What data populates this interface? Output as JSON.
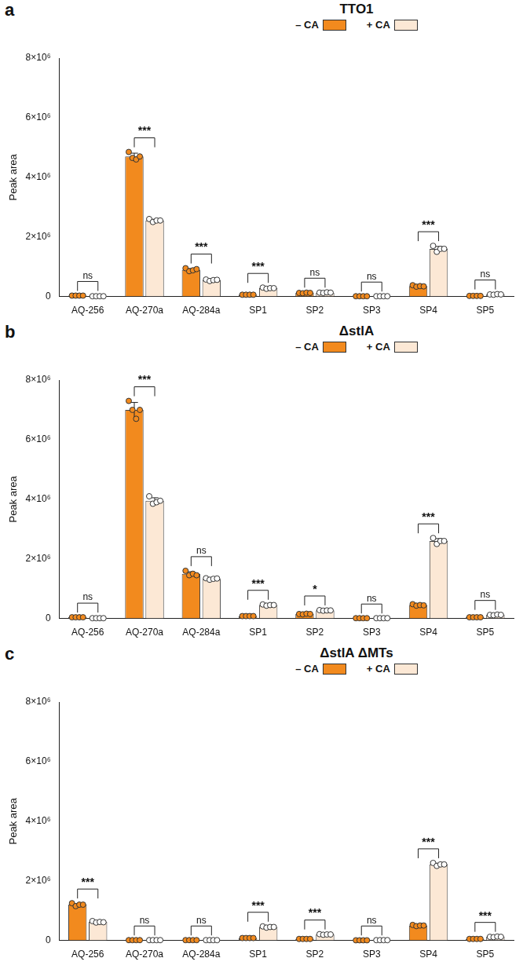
{
  "chart_data": [
    {
      "type": "bar",
      "panel": "a",
      "title": "TTO1",
      "y_label": "Peak area",
      "categories": [
        "AQ-256",
        "AQ-270a",
        "AQ-284a",
        "SP1",
        "SP2",
        "SP3",
        "SP4",
        "SP5"
      ],
      "series": [
        {
          "name": "– CA",
          "color": "#f28a1e",
          "values": [
            30000.0,
            4700000.0,
            900000.0,
            60000.0,
            120000.0,
            10000.0,
            350000.0,
            20000.0
          ],
          "errors": [
            0,
            110000.0,
            40000.0,
            0,
            10000.0,
            0,
            20000.0,
            0
          ],
          "points": [
            [
              30000.0,
              30000.0,
              30000.0,
              30000.0
            ],
            [
              4850000.0,
              4650000.0,
              4600000.0,
              4700000.0
            ],
            [
              950000.0,
              850000.0,
              880000.0,
              920000.0
            ],
            [
              60000.0,
              60000.0,
              60000.0,
              60000.0
            ],
            [
              120000.0,
              110000.0,
              130000.0,
              120000.0
            ],
            [
              10000.0,
              10000.0,
              10000.0,
              10000.0
            ],
            [
              380000.0,
              330000.0,
              350000.0,
              340000.0
            ],
            [
              20000.0,
              20000.0,
              20000.0,
              20000.0
            ]
          ]
        },
        {
          "name": "+ CA",
          "color": "#fce8d5",
          "values": [
            10000.0,
            2550000.0,
            550000.0,
            280000.0,
            130000.0,
            10000.0,
            1600000.0,
            70000.0
          ],
          "errors": [
            0,
            40000.0,
            20000.0,
            20000.0,
            10000.0,
            0,
            80000.0,
            10000.0
          ],
          "points": [
            [
              10000.0,
              10000.0,
              10000.0,
              10000.0
            ],
            [
              2600000.0,
              2500000.0,
              2550000.0,
              2550000.0
            ],
            [
              570000.0,
              520000.0,
              550000.0,
              560000.0
            ],
            [
              300000.0,
              260000.0,
              280000.0,
              280000.0
            ],
            [
              130000.0,
              120000.0,
              140000.0,
              130000.0
            ],
            [
              10000.0,
              10000.0,
              10000.0,
              10000.0
            ],
            [
              1700000.0,
              1500000.0,
              1600000.0,
              1600000.0
            ],
            [
              70000.0,
              60000.0,
              80000.0,
              70000.0
            ]
          ]
        }
      ],
      "significance": [
        "ns",
        "***",
        "***",
        "***",
        "ns",
        "ns",
        "***",
        "ns"
      ],
      "ylim": [
        0,
        8000000.0
      ],
      "yticks": [
        0,
        {
          "value": 2000000.0,
          "label": "2×10⁶"
        },
        {
          "value": 4000000.0,
          "label": "4×10⁶"
        },
        {
          "value": 6000000.0,
          "label": "6×10⁶"
        },
        {
          "value": 8000000.0,
          "label": "8×10⁶"
        }
      ],
      "grid": false,
      "legend": "top"
    },
    {
      "type": "bar",
      "panel": "b",
      "title": "ΔstlA",
      "y_label": "Peak area",
      "categories": [
        "AQ-256",
        "AQ-270a",
        "AQ-284a",
        "SP1",
        "SP2",
        "SP3",
        "SP4",
        "SP5"
      ],
      "series": [
        {
          "name": "– CA",
          "color": "#f28a1e",
          "values": [
            40000.0,
            7000000.0,
            1500000.0,
            80000.0,
            150000.0,
            10000.0,
            450000.0,
            40000.0
          ],
          "errors": [
            0,
            250000.0,
            70000.0,
            0,
            10000.0,
            0,
            20000.0,
            0
          ],
          "points": [
            [
              40000.0,
              40000.0,
              40000.0,
              40000.0
            ],
            [
              7300000.0,
              7000000.0,
              6700000.0,
              7000000.0
            ],
            [
              1600000.0,
              1450000.0,
              1500000.0,
              1450000.0
            ],
            [
              80000.0,
              80000.0,
              80000.0,
              80000.0
            ],
            [
              150000.0,
              140000.0,
              160000.0,
              150000.0
            ],
            [
              10000.0,
              10000.0,
              10000.0,
              10000.0
            ],
            [
              480000.0,
              430000.0,
              450000.0,
              440000.0
            ],
            [
              40000.0,
              40000.0,
              40000.0,
              40000.0
            ]
          ]
        },
        {
          "name": "+ CA",
          "color": "#fce8d5",
          "values": [
            10000.0,
            3950000.0,
            1330000.0,
            450000.0,
            270000.0,
            10000.0,
            2600000.0,
            120000.0
          ],
          "errors": [
            0,
            100000.0,
            20000.0,
            20000.0,
            10000.0,
            0,
            80000.0,
            10000.0
          ],
          "points": [
            [
              10000.0,
              10000.0,
              10000.0,
              10000.0
            ],
            [
              4100000.0,
              3850000.0,
              3900000.0,
              3950000.0
            ],
            [
              1350000.0,
              1300000.0,
              1330000.0,
              1340000.0
            ],
            [
              470000.0,
              430000.0,
              450000.0,
              450000.0
            ],
            [
              280000.0,
              260000.0,
              270000.0,
              270000.0
            ],
            [
              10000.0,
              10000.0,
              10000.0,
              10000.0
            ],
            [
              2700000.0,
              2500000.0,
              2600000.0,
              2600000.0
            ],
            [
              120000.0,
              110000.0,
              130000.0,
              120000.0
            ]
          ]
        }
      ],
      "significance": [
        "ns",
        "***",
        "ns",
        "***",
        "*",
        "ns",
        "***",
        "ns"
      ],
      "ylim": [
        0,
        8000000.0
      ],
      "yticks": [
        0,
        {
          "value": 2000000.0,
          "label": "2×10⁶"
        },
        {
          "value": 4000000.0,
          "label": "4×10⁶"
        },
        {
          "value": 6000000.0,
          "label": "6×10⁶"
        },
        {
          "value": 8000000.0,
          "label": "8×10⁶"
        }
      ],
      "grid": false,
      "legend": "top"
    },
    {
      "type": "bar",
      "panel": "c",
      "title": "ΔstlA ΔMTs",
      "y_label": "Peak area",
      "categories": [
        "AQ-256",
        "AQ-270a",
        "AQ-284a",
        "SP1",
        "SP2",
        "SP3",
        "SP4",
        "SP5"
      ],
      "series": [
        {
          "name": "– CA",
          "color": "#f28a1e",
          "values": [
            1200000.0,
            10000.0,
            10000.0,
            80000.0,
            50000.0,
            5000.0,
            500000.0,
            50000.0
          ],
          "errors": [
            40000.0,
            0,
            0,
            0,
            0,
            0,
            20000.0,
            0
          ],
          "points": [
            [
              1250000.0,
              1150000.0,
              1200000.0,
              1200000.0
            ],
            [
              10000.0,
              10000.0,
              10000.0,
              10000.0
            ],
            [
              10000.0,
              10000.0,
              10000.0,
              10000.0
            ],
            [
              80000.0,
              80000.0,
              80000.0,
              80000.0
            ],
            [
              50000.0,
              50000.0,
              50000.0,
              50000.0
            ],
            [
              5000.0,
              5000.0,
              5000.0,
              5000.0
            ],
            [
              520000.0,
              480000.0,
              500000.0,
              500000.0
            ],
            [
              50000.0,
              50000.0,
              50000.0,
              50000.0
            ]
          ]
        },
        {
          "name": "+ CA",
          "color": "#fce8d5",
          "values": [
            620000.0,
            10000.0,
            10000.0,
            450000.0,
            200000.0,
            10000.0,
            2550000.0,
            120000.0
          ],
          "errors": [
            20000.0,
            0,
            0,
            20000.0,
            10000.0,
            0,
            40000.0,
            10000.0
          ],
          "points": [
            [
              650000.0,
              600000.0,
              620000.0,
              610000.0
            ],
            [
              10000.0,
              10000.0,
              10000.0,
              10000.0
            ],
            [
              10000.0,
              10000.0,
              10000.0,
              10000.0
            ],
            [
              470000.0,
              430000.0,
              450000.0,
              450000.0
            ],
            [
              210000.0,
              190000.0,
              200000.0,
              200000.0
            ],
            [
              10000.0,
              10000.0,
              10000.0,
              10000.0
            ],
            [
              2600000.0,
              2500000.0,
              2550000.0,
              2550000.0
            ],
            [
              120000.0,
              110000.0,
              130000.0,
              120000.0
            ]
          ]
        }
      ],
      "significance": [
        "***",
        "ns",
        "ns",
        "***",
        "***",
        "ns",
        "***",
        "***"
      ],
      "ylim": [
        0,
        8000000.0
      ],
      "yticks": [
        0,
        {
          "value": 2000000.0,
          "label": "2×10⁶"
        },
        {
          "value": 4000000.0,
          "label": "4×10⁶"
        },
        {
          "value": 6000000.0,
          "label": "6×10⁶"
        },
        {
          "value": 8000000.0,
          "label": "8×10⁶"
        }
      ],
      "grid": false,
      "legend": "top"
    }
  ]
}
